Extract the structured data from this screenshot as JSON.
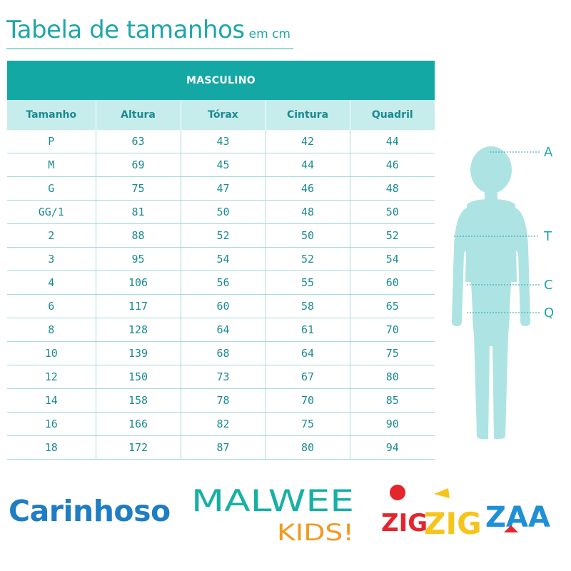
{
  "header": {
    "title": "Tabela de tamanhos",
    "unit": "em cm"
  },
  "table": {
    "group": "MASCULINO",
    "columns": [
      "Tamanho",
      "Altura",
      "Tórax",
      "Cintura",
      "Quadril"
    ],
    "rows": [
      [
        "P",
        "63",
        "43",
        "42",
        "44"
      ],
      [
        "M",
        "69",
        "45",
        "44",
        "46"
      ],
      [
        "G",
        "75",
        "47",
        "46",
        "48"
      ],
      [
        "GG/1",
        "81",
        "50",
        "48",
        "50"
      ],
      [
        "2",
        "88",
        "52",
        "50",
        "52"
      ],
      [
        "3",
        "95",
        "54",
        "52",
        "54"
      ],
      [
        "4",
        "106",
        "56",
        "55",
        "60"
      ],
      [
        "6",
        "117",
        "60",
        "58",
        "65"
      ],
      [
        "8",
        "128",
        "64",
        "61",
        "70"
      ],
      [
        "10",
        "139",
        "68",
        "64",
        "75"
      ],
      [
        "12",
        "150",
        "73",
        "67",
        "80"
      ],
      [
        "14",
        "158",
        "78",
        "70",
        "85"
      ],
      [
        "16",
        "166",
        "82",
        "75",
        "90"
      ],
      [
        "18",
        "172",
        "87",
        "80",
        "94"
      ]
    ]
  },
  "figure": {
    "icon": "child-silhouette-icon",
    "markers": [
      "A",
      "T",
      "C",
      "Q"
    ],
    "color": "#aee3e3"
  },
  "brands": {
    "carinhoso": "Carinhoso",
    "malwee_top": "MALWEE",
    "malwee_bottom": "KIDS!",
    "zig_1": "ZIG",
    "zig_2": "ZIG",
    "zig_3": "ZAA"
  },
  "colors": {
    "teal": "#14a8a5",
    "light_teal": "#c7ecec",
    "text_teal": "#1a8b8f",
    "carinhoso_blue": "#1f7dc4",
    "malwee_teal": "#17b0a5",
    "kids_orange": "#f29a1f",
    "zig_red": "#e4252c",
    "zig_yellow": "#f6c41b",
    "zaa_blue": "#1f8fd8"
  }
}
